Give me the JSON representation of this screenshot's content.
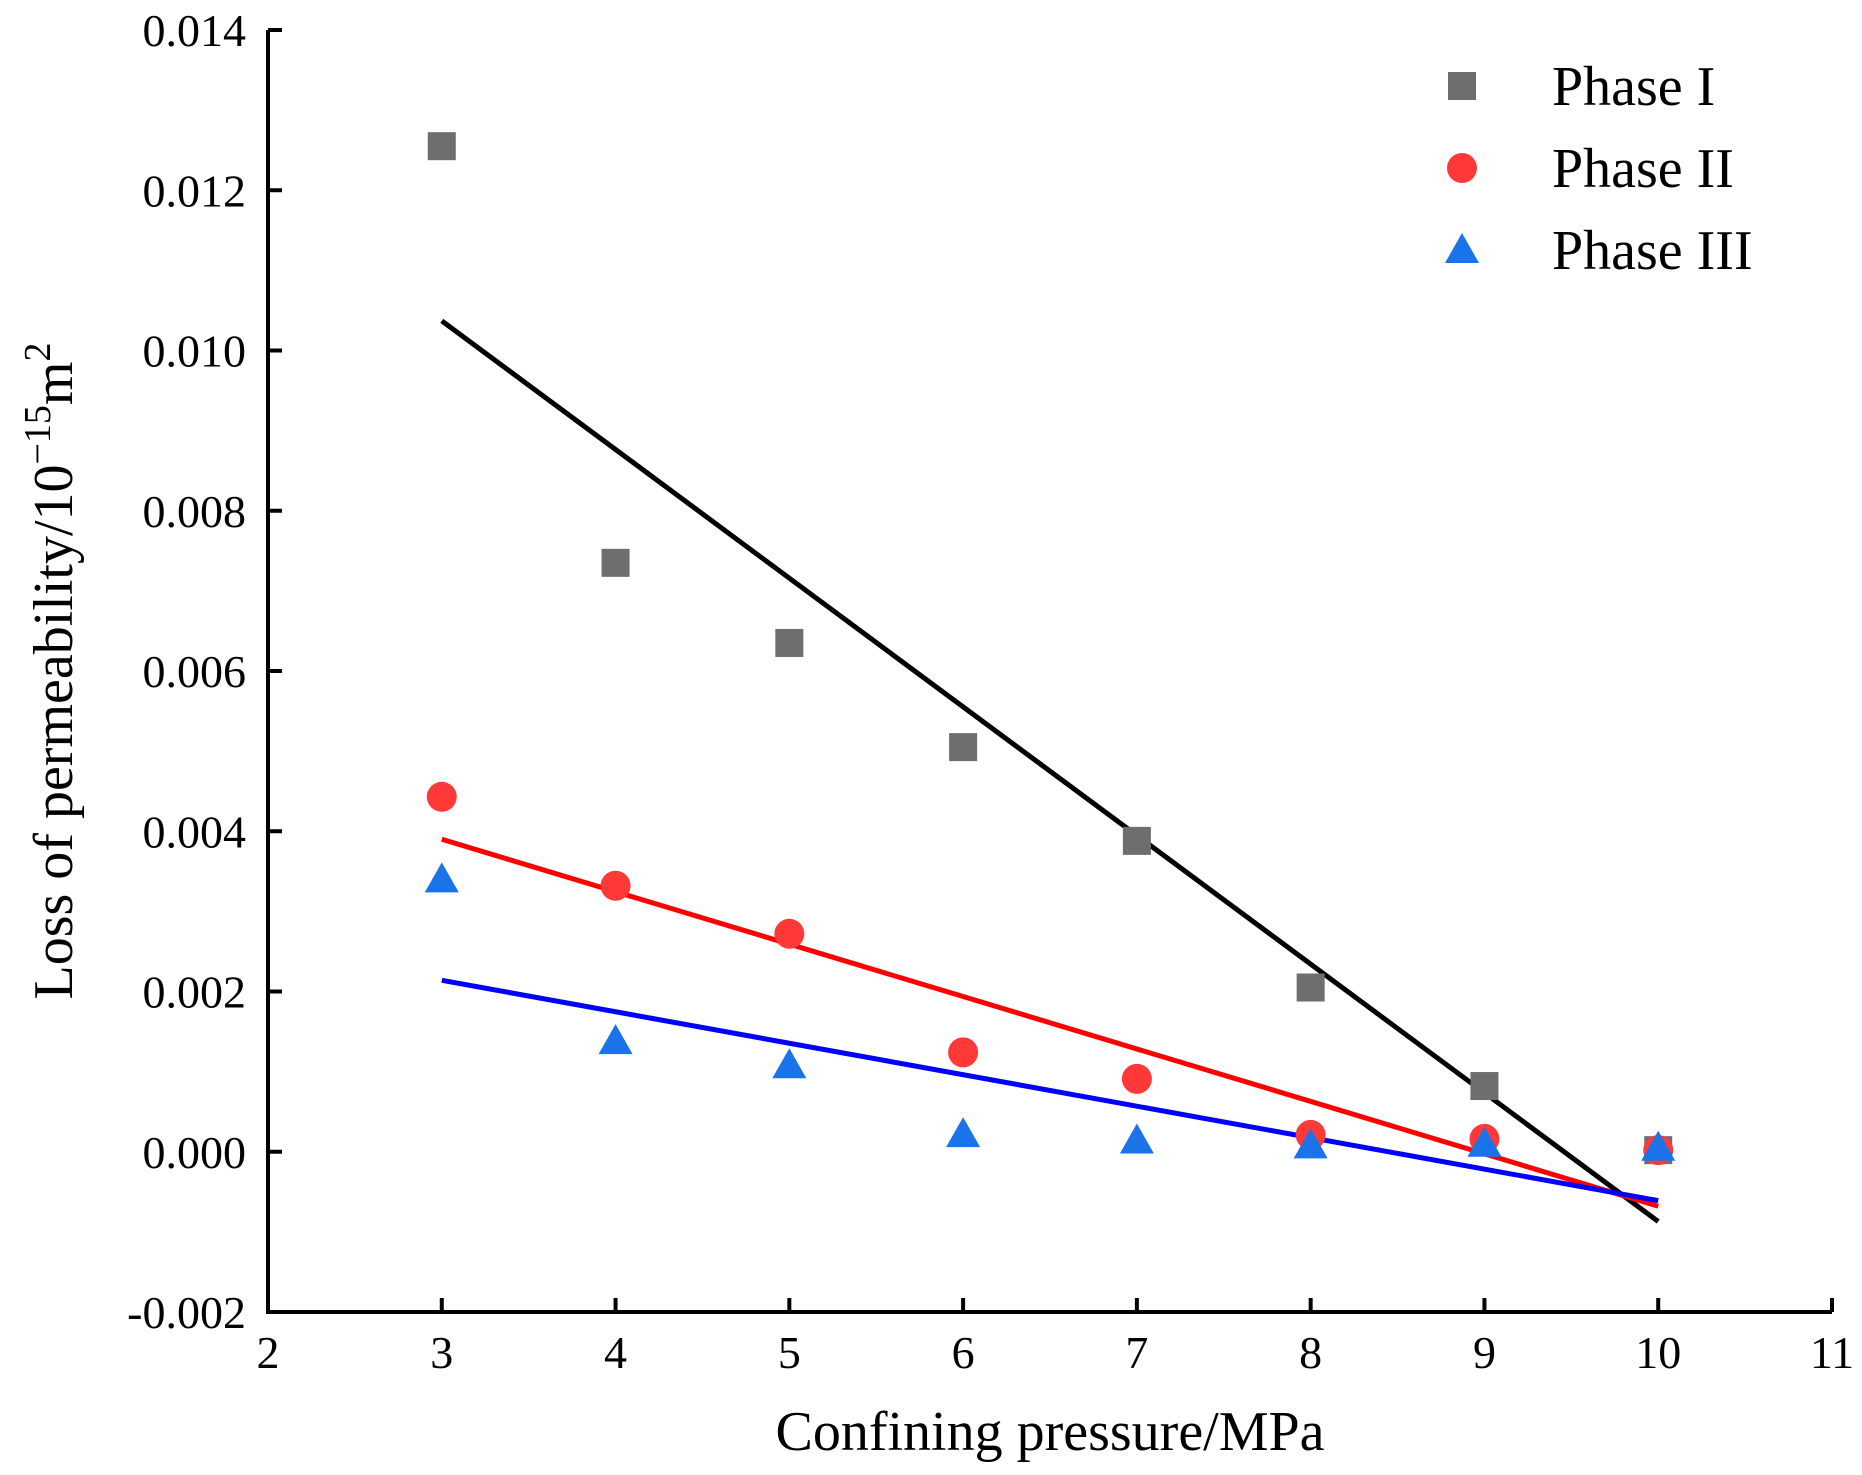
{
  "chart_data": {
    "type": "scatter",
    "title": "",
    "xlabel": "Confining pressure/MPa",
    "ylabel": {
      "base": "Loss of permeability/10",
      "superscript": "−15",
      "unit": "m",
      "unit_superscript": "2"
    },
    "xlim": [
      2,
      11
    ],
    "ylim": [
      -0.002,
      0.014
    ],
    "xticks": [
      "2",
      "3",
      "4",
      "5",
      "6",
      "7",
      "8",
      "9",
      "10",
      "11"
    ],
    "xtick_values": [
      2,
      3,
      4,
      5,
      6,
      7,
      8,
      9,
      10,
      11
    ],
    "yticks": [
      "-0.002",
      "0.000",
      "0.002",
      "0.004",
      "0.006",
      "0.008",
      "0.010",
      "0.012",
      "0.014"
    ],
    "ytick_values": [
      -0.002,
      0.0,
      0.002,
      0.004,
      0.006,
      0.008,
      0.01,
      0.012,
      0.014
    ],
    "legend_position": "top-right",
    "grid": false,
    "series": [
      {
        "name": "Phase I",
        "marker": "square",
        "color": "#6e6e6e",
        "x": [
          3,
          4,
          5,
          6,
          7,
          8,
          9,
          10
        ],
        "y": [
          0.01255,
          0.00735,
          0.00635,
          0.00505,
          0.00388,
          0.00205,
          0.00082,
          2e-05
        ],
        "fit": {
          "color": "#000000",
          "x": [
            3,
            10
          ],
          "y": [
            0.01037,
            -0.00087
          ]
        }
      },
      {
        "name": "Phase II",
        "marker": "circle",
        "color": "#ff3838",
        "x": [
          3,
          4,
          5,
          6,
          7,
          8,
          9,
          10
        ],
        "y": [
          0.00443,
          0.00332,
          0.00272,
          0.00124,
          0.00091,
          0.00021,
          0.00016,
          2e-05
        ],
        "fit": {
          "color": "#ff0000",
          "x": [
            3,
            10
          ],
          "y": [
            0.0039,
            -0.00068
          ]
        }
      },
      {
        "name": "Phase III",
        "marker": "triangle",
        "color": "#1a73e8",
        "x": [
          3,
          4,
          5,
          6,
          7,
          8,
          9,
          10
        ],
        "y": [
          0.0034,
          0.00138,
          0.00108,
          0.00022,
          0.00014,
          8e-05,
          0.0001,
          5e-05
        ],
        "fit": {
          "color": "#0000ff",
          "x": [
            3,
            10
          ],
          "y": [
            0.00214,
            -0.00061
          ]
        }
      }
    ]
  }
}
